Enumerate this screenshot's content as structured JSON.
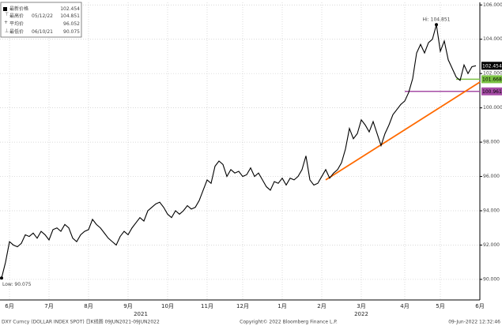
{
  "chart_data": {
    "type": "line",
    "grid": true,
    "ylim": [
      88.8,
      106.15
    ],
    "yticks": [
      {
        "value": 90,
        "label": "90.000"
      },
      {
        "value": 92,
        "label": "92.000"
      },
      {
        "value": 94,
        "label": "94.000"
      },
      {
        "value": 96,
        "label": "96.000"
      },
      {
        "value": 98,
        "label": "98.000"
      },
      {
        "value": 100,
        "label": "100.000"
      },
      {
        "value": 102,
        "label": "102.000"
      },
      {
        "value": 104,
        "label": "104.000"
      },
      {
        "value": 106,
        "label": "106.000"
      }
    ],
    "categories": [
      null,
      null,
      "6月",
      null,
      null,
      null,
      null,
      null,
      null,
      null,
      null,
      null,
      "7月",
      null,
      null,
      null,
      null,
      null,
      null,
      null,
      null,
      null,
      "8月",
      null,
      null,
      null,
      null,
      null,
      null,
      null,
      null,
      null,
      "9月",
      null,
      null,
      null,
      null,
      null,
      null,
      null,
      null,
      null,
      "10月",
      null,
      null,
      null,
      null,
      null,
      null,
      null,
      null,
      null,
      "11月",
      null,
      null,
      null,
      null,
      null,
      null,
      null,
      null,
      "12月",
      null,
      null,
      null,
      null,
      null,
      null,
      null,
      null,
      null,
      "1月",
      null,
      null,
      null,
      null,
      null,
      null,
      null,
      null,
      null,
      "2月",
      null,
      null,
      null,
      null,
      null,
      null,
      null,
      null,
      null,
      "3月",
      null,
      null,
      null,
      null,
      null,
      null,
      null,
      null,
      null,
      null,
      "4月",
      null,
      null,
      null,
      null,
      null,
      null,
      null,
      null,
      "5月",
      null,
      null,
      null,
      null,
      null,
      null,
      null,
      null,
      null,
      "6月"
    ],
    "series": [
      {
        "name": "DXY Curncy",
        "color": "#000000",
        "values": [
          90.075,
          91.0,
          92.2,
          92.0,
          91.9,
          92.1,
          92.6,
          92.5,
          92.7,
          92.4,
          92.8,
          92.6,
          92.3,
          92.9,
          93.0,
          92.8,
          93.2,
          93.0,
          92.4,
          92.2,
          92.6,
          92.8,
          92.9,
          93.5,
          93.2,
          93.0,
          92.7,
          92.4,
          92.2,
          92.0,
          92.5,
          92.8,
          92.6,
          93.0,
          93.3,
          93.6,
          93.4,
          94.0,
          94.2,
          94.4,
          94.5,
          94.2,
          93.8,
          93.6,
          94.0,
          93.8,
          94.0,
          94.3,
          94.1,
          94.2,
          94.6,
          95.2,
          95.8,
          95.6,
          96.6,
          96.9,
          96.7,
          96.0,
          96.4,
          96.2,
          96.3,
          96.0,
          96.1,
          96.5,
          96.0,
          96.2,
          95.8,
          95.4,
          95.2,
          95.7,
          95.6,
          95.9,
          95.5,
          95.9,
          95.8,
          96.0,
          96.4,
          97.2,
          95.8,
          95.5,
          95.6,
          96.0,
          96.4,
          95.9,
          96.2,
          96.4,
          96.8,
          97.6,
          98.8,
          98.2,
          98.5,
          99.3,
          99.0,
          98.6,
          99.2,
          98.5,
          97.8,
          98.5,
          99.0,
          99.6,
          99.9,
          100.2,
          100.4,
          100.9,
          101.7,
          103.2,
          103.7,
          103.2,
          103.8,
          104.0,
          104.851,
          103.3,
          103.9,
          102.8,
          102.3,
          101.8,
          101.6,
          102.5,
          102.0,
          102.4,
          102.454,
          null
        ]
      }
    ],
    "reference_lines": [
      {
        "value": 101.668,
        "color": "#7ac143",
        "x": [
          115,
          121
        ]
      },
      {
        "value": 100.961,
        "color": "#a64ca6",
        "x": [
          102,
          121
        ]
      }
    ],
    "trend_line": {
      "color": "#ff6a00",
      "x": [
        82,
        121
      ],
      "values": [
        95.8,
        101.5
      ]
    },
    "annotations": [
      "Hi: 104.851",
      "Low: 90.075"
    ],
    "legend": [
      {
        "name": "最新价格",
        "value": 102.454
      },
      {
        "name": "最高价",
        "date": "05/12/22",
        "value": 104.851
      },
      {
        "name": "平均价",
        "value": 96.052
      },
      {
        "name": "最低价",
        "date": "06/10/21",
        "value": 90.075
      }
    ],
    "year_labels": [
      "2021",
      "2022"
    ],
    "footer": {
      "left": "DXY Curncy (DOLLAR INDEX SPOT)  日K线图 09JUN2021-09JUN2022",
      "center": "Copyright© 2022 Bloomberg Finance L.P.",
      "right": "09-Jun-2022 12:32:46"
    }
  }
}
